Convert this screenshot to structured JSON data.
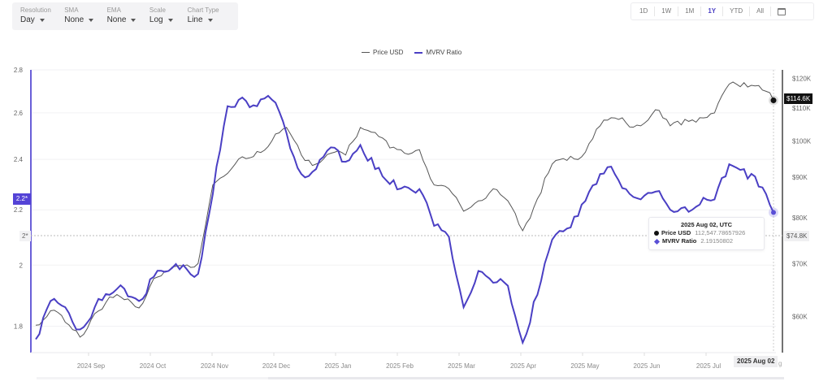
{
  "controls": [
    {
      "label": "Resolution",
      "value": "Day"
    },
    {
      "label": "SMA",
      "value": "None"
    },
    {
      "label": "EMA",
      "value": "None"
    },
    {
      "label": "Scale",
      "value": "Log"
    },
    {
      "label": "Chart Type",
      "value": "Line"
    }
  ],
  "ranges": [
    "1D",
    "1W",
    "1M",
    "1Y",
    "YTD",
    "All"
  ],
  "active_range": "1Y",
  "calendar_icon": "calendar-icon",
  "legend": [
    {
      "name": "Price USD",
      "color": "#555555"
    },
    {
      "name": "MVRV Ratio",
      "color": "#4a3fc4"
    }
  ],
  "crosshair": {
    "date_label": "2025 Aug 02",
    "date_tail": "g",
    "price_flag": "$114.6K",
    "price_cross": "$74.8K",
    "mvrv_flag": "2.2*",
    "mvrv_cross": "2*"
  },
  "tooltip": {
    "title": "2025 Aug 02, UTC",
    "rows": [
      {
        "key": "Price USD",
        "value": "112,547.78657926"
      },
      {
        "key": "MVRV Ratio",
        "value": "2.19150802"
      }
    ]
  },
  "chart_data": {
    "type": "line",
    "title": "",
    "xlabel": "",
    "ylabel_left": "MVRV Ratio",
    "ylabel_right": "Price USD",
    "scale": "log",
    "x_ticks": [
      "2024 Sep",
      "2024 Oct",
      "2024 Nov",
      "2024 Dec",
      "2025 Jan",
      "2025 Feb",
      "2025 Mar",
      "2025 Apr",
      "2025 May",
      "2025 Jun",
      "2025 Jul",
      "2025 Aug 02"
    ],
    "y_left_ticks": [
      "2.8",
      "2.6",
      "2.4",
      "2.2",
      "2",
      "1.8"
    ],
    "y_right_ticks": [
      "$120K",
      "$110K",
      "$100K",
      "$90K",
      "$80K",
      "$70K",
      "$60K"
    ],
    "y_left_range": [
      1.72,
      2.8
    ],
    "y_right_range": [
      54000,
      123000
    ],
    "grid": true,
    "legend_position": "top",
    "x": [
      "2024-08-20",
      "2024-08-27",
      "2024-09-03",
      "2024-09-10",
      "2024-09-17",
      "2024-09-24",
      "2024-10-01",
      "2024-10-08",
      "2024-10-15",
      "2024-10-22",
      "2024-10-29",
      "2024-11-05",
      "2024-11-12",
      "2024-11-19",
      "2024-11-26",
      "2024-12-03",
      "2024-12-10",
      "2024-12-17",
      "2024-12-24",
      "2024-12-31",
      "2025-01-07",
      "2025-01-14",
      "2025-01-21",
      "2025-01-28",
      "2025-02-04",
      "2025-02-11",
      "2025-02-18",
      "2025-02-25",
      "2025-03-04",
      "2025-03-11",
      "2025-03-18",
      "2025-03-25",
      "2025-04-01",
      "2025-04-08",
      "2025-04-15",
      "2025-04-22",
      "2025-04-29",
      "2025-05-06",
      "2025-05-13",
      "2025-05-20",
      "2025-05-27",
      "2025-06-03",
      "2025-06-10",
      "2025-06-17",
      "2025-06-24",
      "2025-07-01",
      "2025-07-08",
      "2025-07-15",
      "2025-07-22",
      "2025-07-29",
      "2025-08-02"
    ],
    "series": [
      {
        "name": "Price USD",
        "color": "#555555",
        "values": [
          58500,
          61000,
          59000,
          56500,
          60500,
          63500,
          63000,
          61500,
          67000,
          68500,
          69500,
          70000,
          88000,
          91000,
          95500,
          97000,
          100000,
          104000,
          96000,
          93500,
          96500,
          96000,
          104000,
          102500,
          98000,
          96500,
          97500,
          88000,
          87000,
          81500,
          84000,
          87000,
          84000,
          77000,
          84500,
          93500,
          94500,
          95500,
          103500,
          107000,
          105500,
          104500,
          109500,
          104500,
          106500,
          107000,
          108500,
          118000,
          118500,
          117500,
          112547
        ]
      },
      {
        "name": "MVRV Ratio",
        "color": "#4a3fc4",
        "values": [
          1.76,
          1.88,
          1.86,
          1.79,
          1.86,
          1.9,
          1.92,
          1.88,
          1.96,
          1.98,
          2.0,
          1.97,
          2.26,
          2.63,
          2.67,
          2.63,
          2.66,
          2.51,
          2.34,
          2.36,
          2.45,
          2.39,
          2.46,
          2.36,
          2.3,
          2.29,
          2.28,
          2.14,
          2.1,
          1.86,
          1.98,
          1.94,
          1.93,
          1.75,
          1.9,
          2.09,
          2.13,
          2.22,
          2.3,
          2.37,
          2.28,
          2.24,
          2.27,
          2.2,
          2.21,
          2.22,
          2.24,
          2.38,
          2.36,
          2.29,
          2.19
        ]
      }
    ]
  }
}
